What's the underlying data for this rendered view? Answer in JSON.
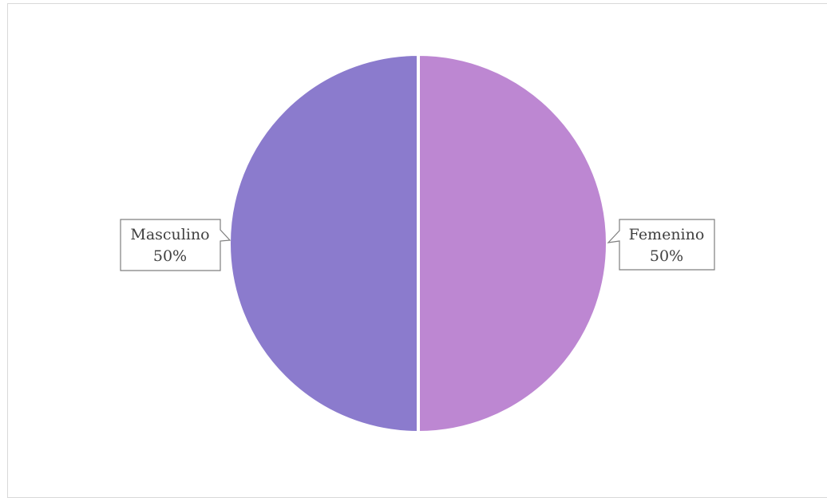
{
  "chart_data": {
    "type": "pie",
    "title": "",
    "slices": [
      {
        "label": "Femenino",
        "value": 50,
        "percent_label": "50%",
        "color": "#bd87d2"
      },
      {
        "label": "Masculino",
        "value": 50,
        "percent_label": "50%",
        "color": "#8b7bcd"
      }
    ],
    "legend": "none",
    "data_labels": "callout"
  }
}
